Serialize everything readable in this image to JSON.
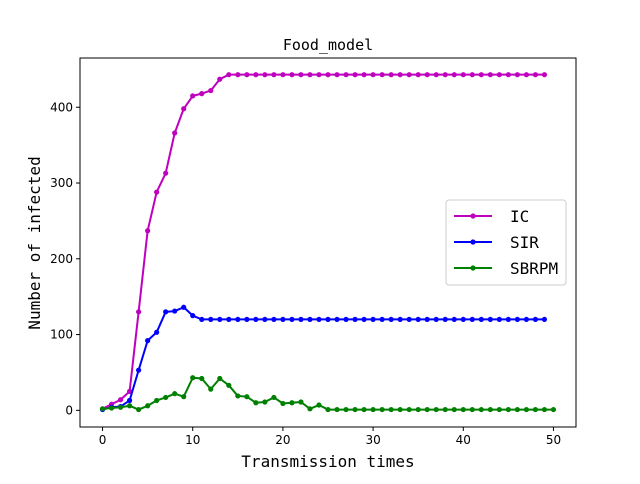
{
  "chart_data": {
    "type": "line",
    "title": "Food_model",
    "xlabel": "Transmission times",
    "ylabel": "Number of infected",
    "xlim": [
      -2.5,
      52.5
    ],
    "ylim": [
      -22,
      465
    ],
    "x_ticks": [
      0,
      10,
      20,
      30,
      40,
      50
    ],
    "y_ticks": [
      0,
      100,
      200,
      300,
      400
    ],
    "grid": false,
    "legend_position": "center-right",
    "series": [
      {
        "name": "IC",
        "color": "#bf00bf",
        "x": [
          0,
          1,
          2,
          3,
          4,
          5,
          6,
          7,
          8,
          9,
          10,
          11,
          12,
          13,
          14,
          15,
          16,
          17,
          18,
          19,
          20,
          21,
          22,
          23,
          24,
          25,
          26,
          27,
          28,
          29,
          30,
          31,
          32,
          33,
          34,
          35,
          36,
          37,
          38,
          39,
          40,
          41,
          42,
          43,
          44,
          45,
          46,
          47,
          48,
          49
        ],
        "y": [
          2,
          8,
          14,
          25,
          130,
          237,
          288,
          313,
          366,
          398,
          415,
          418,
          422,
          437,
          443,
          443,
          443,
          443,
          443,
          443,
          443,
          443,
          443,
          443,
          443,
          443,
          443,
          443,
          443,
          443,
          443,
          443,
          443,
          443,
          443,
          443,
          443,
          443,
          443,
          443,
          443,
          443,
          443,
          443,
          443,
          443,
          443,
          443,
          443,
          443
        ]
      },
      {
        "name": "SIR",
        "color": "#0000ff",
        "x": [
          0,
          1,
          2,
          3,
          4,
          5,
          6,
          7,
          8,
          9,
          10,
          11,
          12,
          13,
          14,
          15,
          16,
          17,
          18,
          19,
          20,
          21,
          22,
          23,
          24,
          25,
          26,
          27,
          28,
          29,
          30,
          31,
          32,
          33,
          34,
          35,
          36,
          37,
          38,
          39,
          40,
          41,
          42,
          43,
          44,
          45,
          46,
          47,
          48,
          49
        ],
        "y": [
          1,
          4,
          5,
          13,
          53,
          92,
          103,
          130,
          131,
          136,
          125,
          120,
          120,
          120,
          120,
          120,
          120,
          120,
          120,
          120,
          120,
          120,
          120,
          120,
          120,
          120,
          120,
          120,
          120,
          120,
          120,
          120,
          120,
          120,
          120,
          120,
          120,
          120,
          120,
          120,
          120,
          120,
          120,
          120,
          120,
          120,
          120,
          120,
          120,
          120
        ]
      },
      {
        "name": "SBRPM",
        "color": "#008000",
        "x": [
          0,
          1,
          2,
          3,
          4,
          5,
          6,
          7,
          8,
          9,
          10,
          11,
          12,
          13,
          14,
          15,
          16,
          17,
          18,
          19,
          20,
          21,
          22,
          23,
          24,
          25,
          26,
          27,
          28,
          29,
          30,
          31,
          32,
          33,
          34,
          35,
          36,
          37,
          38,
          39,
          40,
          41,
          42,
          43,
          44,
          45,
          46,
          47,
          48,
          49,
          50
        ],
        "y": [
          2,
          3,
          4,
          6,
          1,
          6,
          13,
          17,
          22,
          18,
          43,
          42,
          28,
          42,
          33,
          19,
          18,
          10,
          11,
          17,
          9,
          10,
          11,
          2,
          7,
          1,
          1,
          1,
          1,
          1,
          1,
          1,
          1,
          1,
          1,
          1,
          1,
          1,
          1,
          1,
          1,
          1,
          1,
          1,
          1,
          1,
          1,
          1,
          1,
          1,
          1
        ]
      }
    ]
  }
}
